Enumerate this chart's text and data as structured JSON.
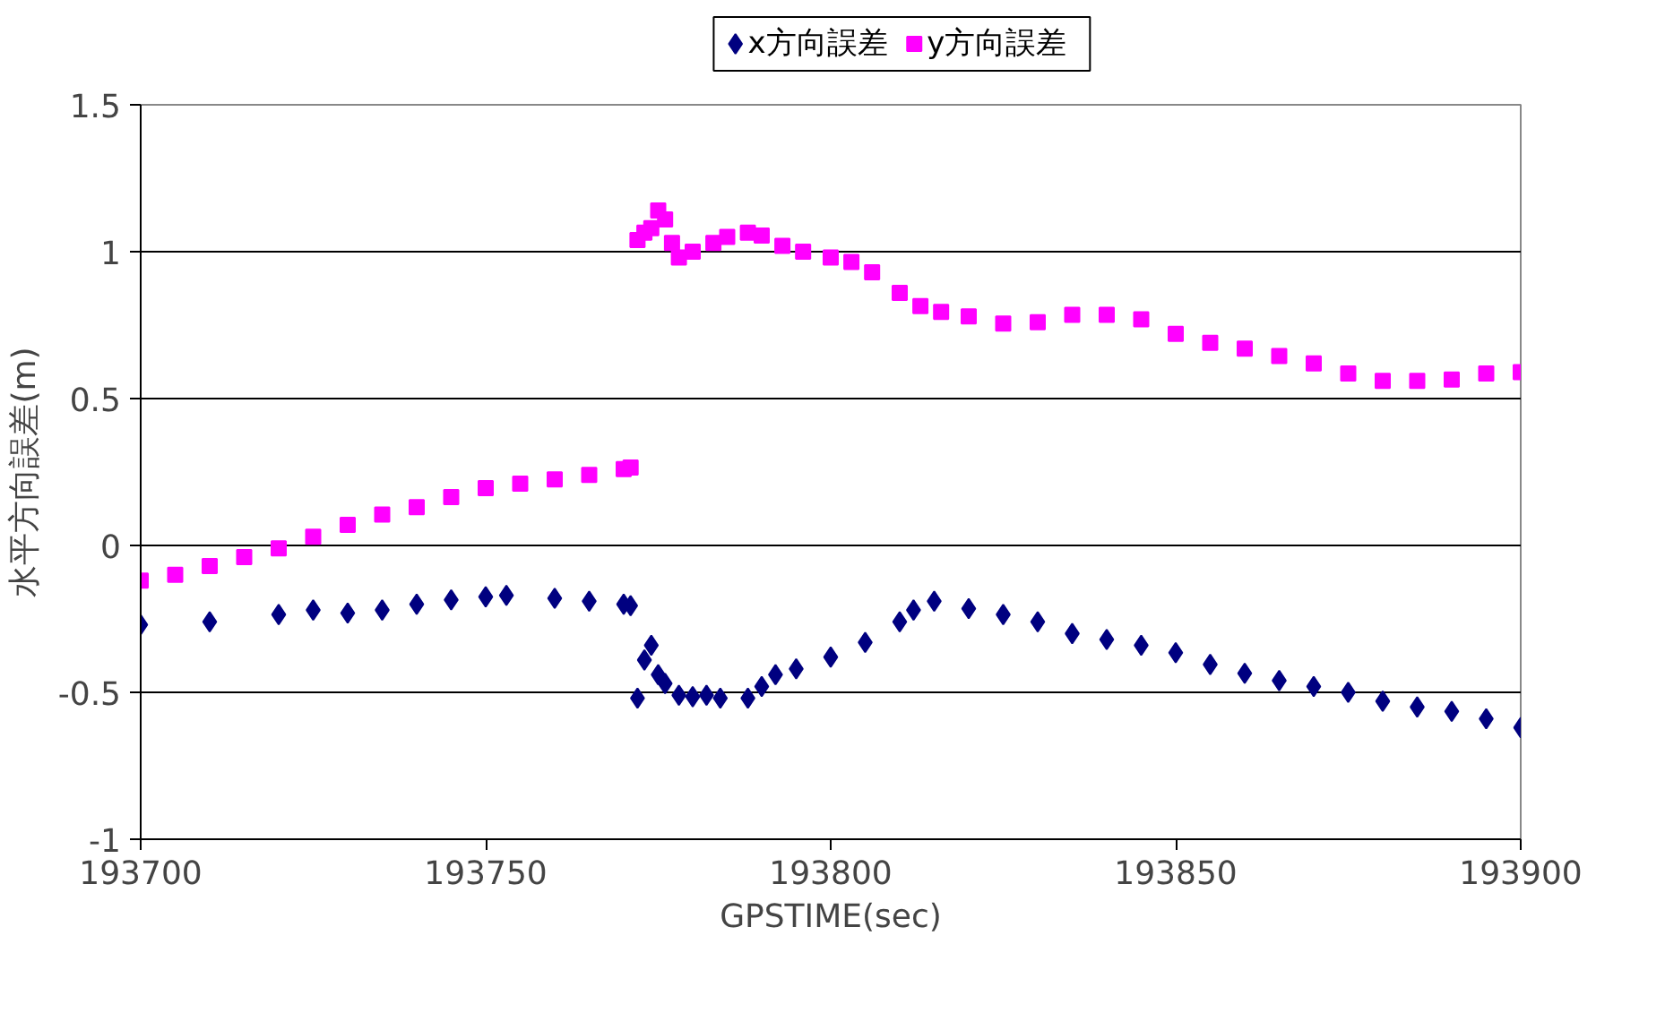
{
  "chart_data": {
    "type": "scatter",
    "xlabel": "GPSTIME(sec)",
    "ylabel": "水平方向誤差(m)",
    "legend": "top",
    "grid": "y",
    "xlim": [
      193700,
      193900
    ],
    "xticks": [
      193700,
      193750,
      193800,
      193850,
      193900
    ],
    "ylim": [
      -1,
      1.5
    ],
    "yticks": [
      -1,
      -0.5,
      0,
      0.5,
      1,
      1.5
    ],
    "series": [
      {
        "name": "x方向誤差",
        "color": "#000080",
        "marker": "diamond",
        "x": [
          193700,
          193710,
          193720,
          193725,
          193730,
          193735,
          193740,
          193745,
          193750,
          193753,
          193760,
          193765,
          193770,
          193771,
          193772,
          193773,
          193774,
          193775,
          193776,
          193778,
          193780,
          193782,
          193784,
          193788,
          193790,
          193792,
          193795,
          193800,
          193805,
          193810,
          193812,
          193815,
          193820,
          193825,
          193830,
          193835,
          193840,
          193845,
          193850,
          193855,
          193860,
          193865,
          193870,
          193875,
          193880,
          193885,
          193890,
          193895,
          193900
        ],
        "values": [
          -0.27,
          -0.26,
          -0.235,
          -0.22,
          -0.23,
          -0.22,
          -0.2,
          -0.185,
          -0.175,
          -0.17,
          -0.18,
          -0.19,
          -0.2,
          -0.205,
          -0.52,
          -0.39,
          -0.34,
          -0.44,
          -0.47,
          -0.51,
          -0.515,
          -0.51,
          -0.52,
          -0.52,
          -0.48,
          -0.44,
          -0.42,
          -0.38,
          -0.33,
          -0.26,
          -0.22,
          -0.19,
          -0.215,
          -0.235,
          -0.26,
          -0.3,
          -0.32,
          -0.34,
          -0.365,
          -0.405,
          -0.435,
          -0.46,
          -0.48,
          -0.5,
          -0.53,
          -0.55,
          -0.565,
          -0.59,
          -0.62
        ]
      },
      {
        "name": "y方向誤差",
        "color": "#ff00ff",
        "marker": "square",
        "x": [
          193700,
          193705,
          193710,
          193715,
          193720,
          193725,
          193730,
          193735,
          193740,
          193745,
          193750,
          193755,
          193760,
          193765,
          193770,
          193771,
          193772,
          193773,
          193774,
          193775,
          193776,
          193777,
          193778,
          193780,
          193783,
          193785,
          193788,
          193790,
          193793,
          193796,
          193800,
          193803,
          193806,
          193810,
          193813,
          193816,
          193820,
          193825,
          193830,
          193835,
          193840,
          193845,
          193850,
          193855,
          193860,
          193865,
          193870,
          193875,
          193880,
          193885,
          193890,
          193895,
          193900
        ],
        "values": [
          -0.12,
          -0.1,
          -0.07,
          -0.04,
          -0.01,
          0.03,
          0.07,
          0.105,
          0.13,
          0.165,
          0.195,
          0.21,
          0.225,
          0.24,
          0.26,
          0.265,
          1.04,
          1.065,
          1.08,
          1.14,
          1.11,
          1.03,
          0.98,
          1.0,
          1.03,
          1.05,
          1.065,
          1.055,
          1.02,
          1.0,
          0.98,
          0.965,
          0.93,
          0.86,
          0.815,
          0.795,
          0.78,
          0.755,
          0.76,
          0.785,
          0.785,
          0.77,
          0.72,
          0.69,
          0.67,
          0.645,
          0.62,
          0.585,
          0.56,
          0.56,
          0.565,
          0.585,
          0.59
        ]
      }
    ]
  }
}
